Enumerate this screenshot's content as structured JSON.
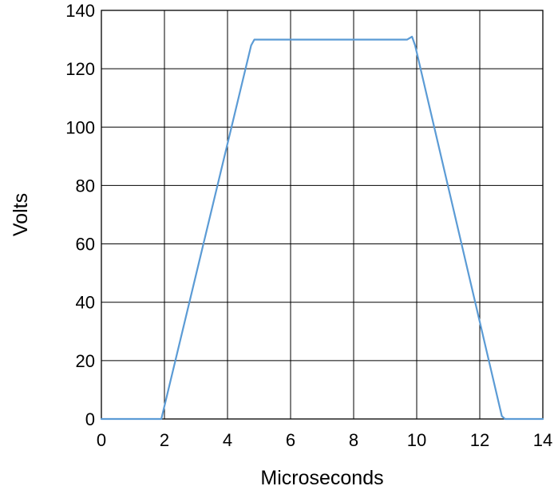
{
  "chart_data": {
    "type": "line",
    "title": "",
    "xlabel": "Microseconds",
    "ylabel": "Volts",
    "xlim": [
      0,
      14
    ],
    "ylim": [
      0,
      140
    ],
    "x_ticks": [
      0,
      2,
      4,
      6,
      8,
      10,
      12,
      14
    ],
    "y_ticks": [
      0,
      20,
      40,
      60,
      80,
      100,
      120,
      140
    ],
    "x_tick_labels": [
      "0",
      "2",
      "4",
      "6",
      "8",
      "10",
      "12",
      "14"
    ],
    "y_tick_labels": [
      "0",
      "20",
      "40",
      "60",
      "80",
      "100",
      "120",
      "140"
    ],
    "grid": true,
    "legend": "none",
    "series": [
      {
        "color": "#5b9bd5",
        "x": [
          0,
          1.8,
          1.9,
          4.75,
          4.85,
          5.0,
          9.7,
          9.85,
          9.95,
          12.7,
          12.8,
          14
        ],
        "y": [
          0,
          0,
          0,
          128,
          130,
          130,
          130,
          131,
          128,
          1,
          0,
          0
        ]
      }
    ]
  }
}
